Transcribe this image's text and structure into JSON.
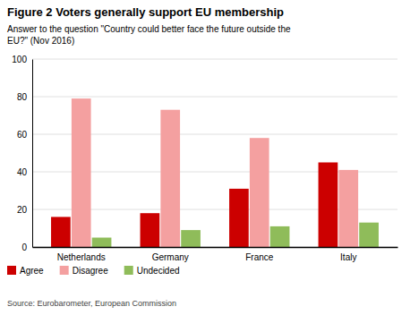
{
  "chart_data": {
    "type": "bar",
    "title": "Figure 2 Voters generally support EU membership",
    "subtitle": "Answer to the question \"Country could better face the future outside the\nEU?\" (Nov 2016)",
    "source": "Source: Eurobarometer, European Commission",
    "categories": [
      "Netherlands",
      "Germany",
      "France",
      "Italy"
    ],
    "series": [
      {
        "name": "Agree",
        "color": "#cc0000",
        "values": [
          16,
          18,
          31,
          45
        ]
      },
      {
        "name": "Disagree",
        "color": "#f4a0a0",
        "values": [
          79,
          73,
          58,
          41
        ]
      },
      {
        "name": "Undecided",
        "color": "#8fbc5a",
        "values": [
          5,
          9,
          11,
          13
        ]
      }
    ],
    "ylim": [
      0,
      100
    ],
    "yticks": [
      0,
      20,
      40,
      60,
      80,
      100
    ],
    "grid": true,
    "legend": "bottom"
  }
}
